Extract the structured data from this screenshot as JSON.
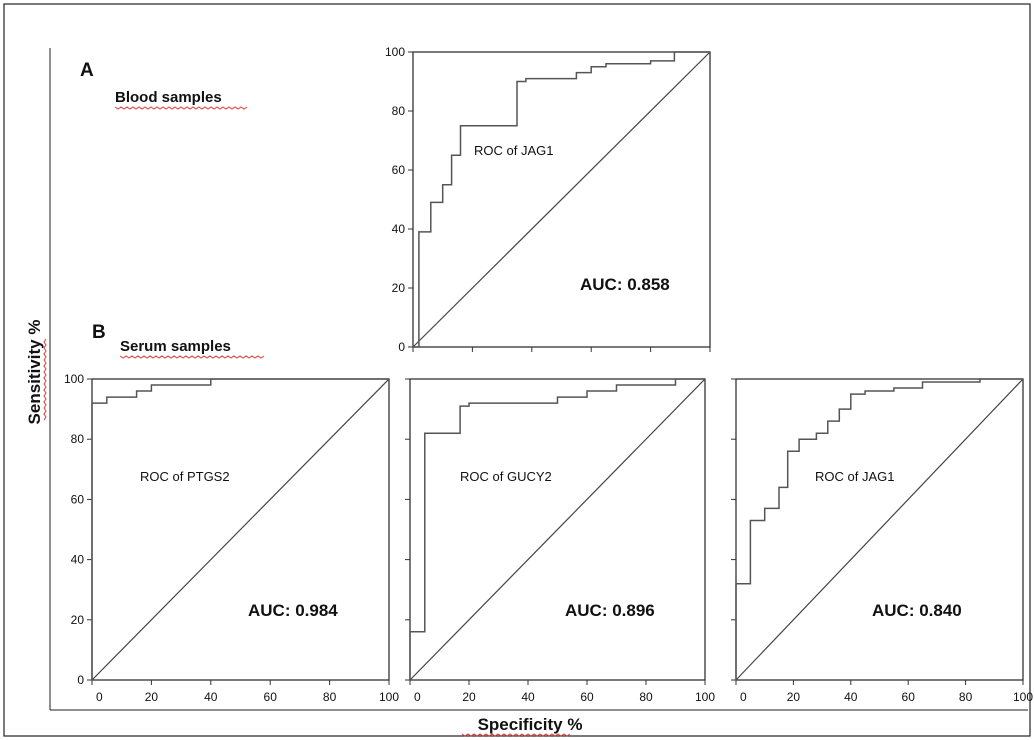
{
  "figure": {
    "panel_a": "A",
    "panel_b": "B",
    "section_a": "Blood samples",
    "section_b": "Serum samples",
    "ylabel": "Sensitivity %",
    "xlabel": "Specificity %"
  },
  "chart_data": [
    {
      "type": "line",
      "panel": "A",
      "annotation": "ROC of JAG1",
      "auc_label": "AUC: 0.858",
      "xlim": [
        0,
        100
      ],
      "ylim": [
        0,
        100
      ],
      "yticks": [
        "0",
        "20",
        "40",
        "60",
        "80",
        "100"
      ],
      "xticks": [],
      "diagonal": true,
      "series": [
        {
          "x": [
            0,
            2,
            2,
            6,
            6,
            10,
            10,
            13,
            13,
            16,
            16,
            25,
            25,
            35,
            35,
            38,
            38,
            55,
            55,
            60,
            60,
            65,
            65,
            80,
            80,
            88,
            88,
            100
          ],
          "y": [
            0,
            0,
            39,
            39,
            49,
            49,
            55,
            55,
            65,
            65,
            75,
            75,
            75,
            75,
            90,
            90,
            91,
            91,
            93,
            93,
            95,
            95,
            96,
            96,
            97,
            97,
            100,
            100
          ]
        }
      ]
    },
    {
      "type": "line",
      "panel": "B",
      "annotation": "ROC of PTGS2",
      "auc_label": "AUC: 0.984",
      "xlim": [
        0,
        100
      ],
      "ylim": [
        0,
        100
      ],
      "yticks": [
        "0",
        "20",
        "40",
        "60",
        "80",
        "100"
      ],
      "xticks": [
        "0",
        "20",
        "40",
        "60",
        "80",
        "100"
      ],
      "diagonal": true,
      "series": [
        {
          "x": [
            0,
            0,
            5,
            5,
            15,
            15,
            20,
            20,
            40,
            40,
            100
          ],
          "y": [
            0,
            92,
            92,
            94,
            94,
            96,
            96,
            98,
            98,
            100,
            100
          ]
        }
      ]
    },
    {
      "type": "line",
      "panel": "B",
      "annotation": "ROC of GUCY2",
      "auc_label": "AUC: 0.896",
      "xlim": [
        0,
        100
      ],
      "ylim": [
        0,
        100
      ],
      "yticks": [],
      "xticks": [
        "0",
        "20",
        "40",
        "60",
        "80",
        "100"
      ],
      "diagonal": true,
      "series": [
        {
          "x": [
            0,
            0,
            5,
            5,
            17,
            17,
            20,
            20,
            50,
            50,
            60,
            60,
            70,
            70,
            90,
            90,
            100
          ],
          "y": [
            0,
            16,
            16,
            82,
            82,
            91,
            91,
            92,
            92,
            94,
            94,
            96,
            96,
            98,
            98,
            100,
            100
          ]
        }
      ]
    },
    {
      "type": "line",
      "panel": "B",
      "annotation": "ROC of JAG1",
      "auc_label": "AUC: 0.840",
      "xlim": [
        0,
        100
      ],
      "ylim": [
        0,
        100
      ],
      "yticks": [],
      "xticks": [
        "0",
        "20",
        "40",
        "60",
        "80",
        "100"
      ],
      "diagonal": true,
      "series": [
        {
          "x": [
            0,
            0,
            5,
            5,
            10,
            10,
            15,
            15,
            18,
            18,
            22,
            22,
            28,
            28,
            32,
            32,
            36,
            36,
            40,
            40,
            45,
            45,
            55,
            55,
            65,
            65,
            85,
            85,
            100
          ],
          "y": [
            0,
            32,
            32,
            53,
            53,
            57,
            57,
            64,
            64,
            76,
            76,
            80,
            80,
            82,
            82,
            86,
            86,
            90,
            90,
            95,
            95,
            96,
            96,
            97,
            97,
            99,
            99,
            100,
            100
          ]
        }
      ]
    }
  ]
}
